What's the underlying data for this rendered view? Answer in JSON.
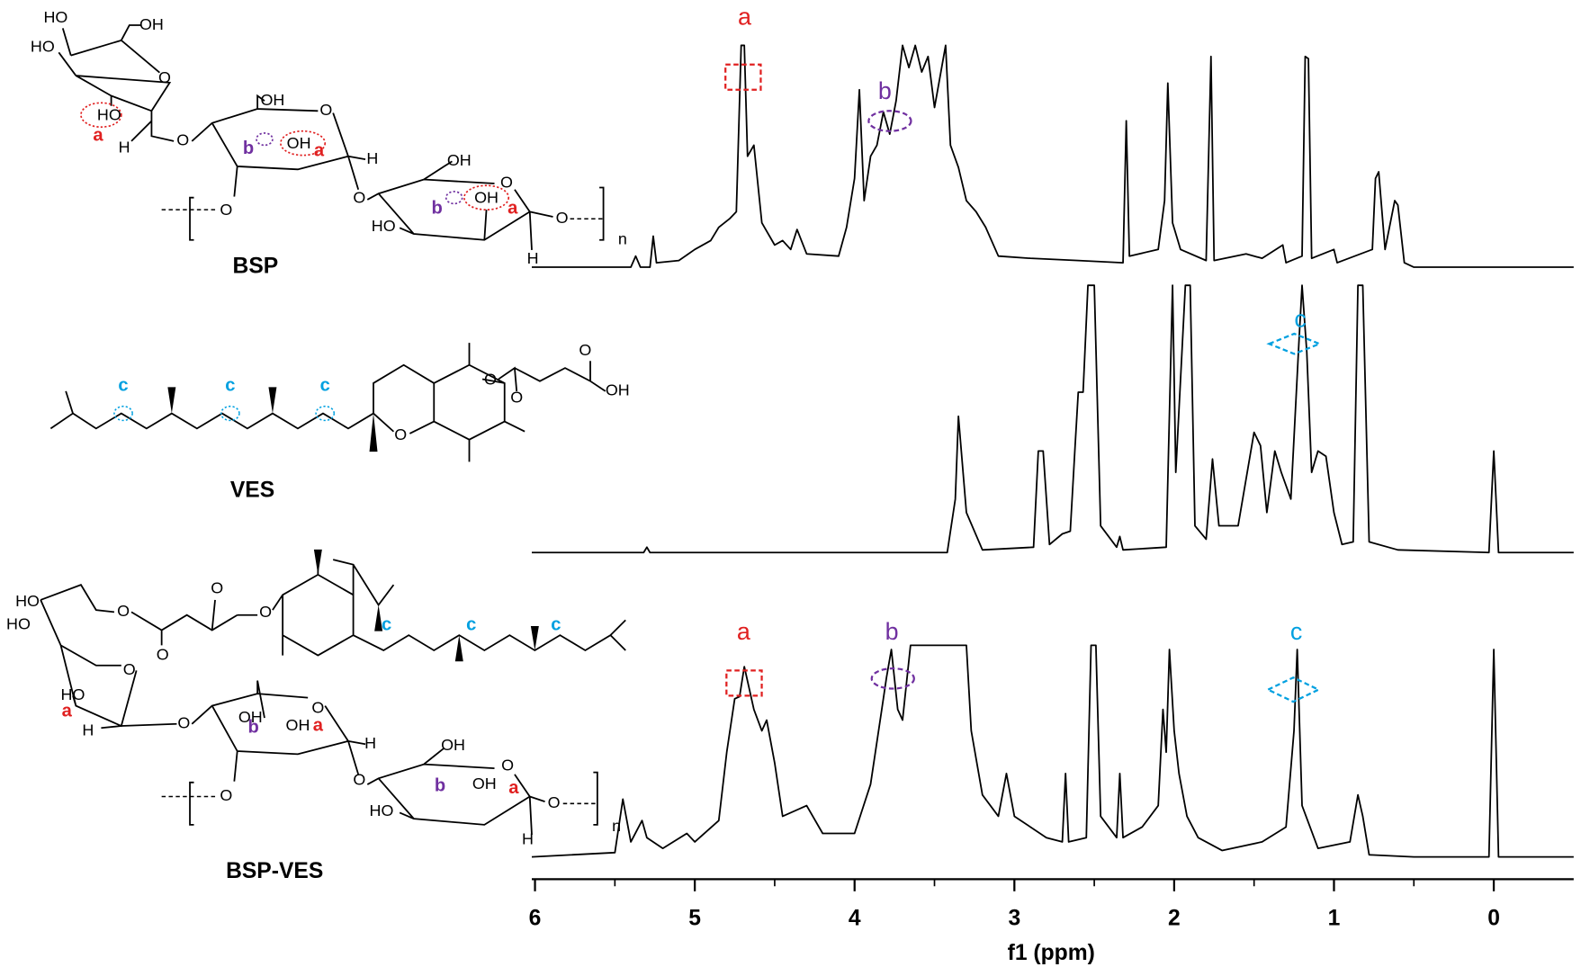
{
  "chart_data": {
    "type": "line",
    "x_label": "f1 (ppm)",
    "xlim": [
      6.02,
      -0.5
    ],
    "xticks": [
      6,
      5,
      4,
      3,
      2,
      1,
      0
    ],
    "ylim": [
      0,
      100
    ],
    "annotations": [
      "a",
      "b",
      "c",
      "a",
      "b",
      "c"
    ],
    "series": [
      {
        "name": "BSP",
        "color": "#000000",
        "x": [
          6.02,
          5.4,
          5.37,
          5.34,
          5.28,
          5.26,
          5.24,
          5.1,
          5.0,
          4.9,
          4.85,
          4.78,
          4.74,
          4.71,
          4.69,
          4.67,
          4.63,
          4.58,
          4.5,
          4.45,
          4.4,
          4.36,
          4.3,
          4.1,
          4.05,
          4.0,
          3.97,
          3.94,
          3.9,
          3.86,
          3.82,
          3.78,
          3.74,
          3.7,
          3.66,
          3.62,
          3.58,
          3.54,
          3.5,
          3.46,
          3.43,
          3.4,
          3.35,
          3.3,
          3.24,
          3.18,
          3.1,
          2.9,
          2.6,
          2.32,
          2.3,
          2.28,
          2.1,
          2.06,
          2.04,
          2.01,
          1.96,
          1.8,
          1.77,
          1.75,
          1.55,
          1.45,
          1.32,
          1.3,
          1.2,
          1.18,
          1.16,
          1.14,
          1.0,
          0.98,
          0.76,
          0.74,
          0.72,
          0.68,
          0.62,
          0.6,
          0.56,
          0.5,
          -0.5
        ],
        "values": [
          0,
          0,
          5,
          0,
          0,
          14,
          2,
          3,
          8,
          12,
          18,
          22,
          25,
          100,
          100,
          50,
          55,
          20,
          10,
          12,
          8,
          17,
          6,
          5,
          18,
          40,
          80,
          30,
          50,
          55,
          70,
          60,
          75,
          100,
          90,
          100,
          88,
          95,
          72,
          88,
          100,
          55,
          45,
          30,
          25,
          18,
          5,
          4,
          3,
          2,
          66,
          5,
          8,
          30,
          83,
          20,
          8,
          3,
          95,
          3,
          6,
          4,
          10,
          2,
          5,
          95,
          94,
          4,
          8,
          2,
          8,
          40,
          43,
          8,
          30,
          28,
          2,
          0,
          0
        ]
      },
      {
        "name": "VES",
        "color": "#000000",
        "x": [
          6.02,
          5.32,
          5.3,
          5.28,
          3.42,
          3.37,
          3.35,
          3.3,
          3.2,
          2.88,
          2.85,
          2.82,
          2.78,
          2.7,
          2.65,
          2.62,
          2.6,
          2.57,
          2.54,
          2.5,
          2.46,
          2.36,
          2.34,
          2.32,
          2.05,
          2.01,
          1.99,
          1.93,
          1.9,
          1.87,
          1.8,
          1.76,
          1.72,
          1.6,
          1.5,
          1.46,
          1.42,
          1.37,
          1.33,
          1.27,
          1.22,
          1.2,
          1.17,
          1.14,
          1.1,
          1.05,
          1.0,
          0.95,
          0.88,
          0.85,
          0.82,
          0.78,
          0.6,
          0.03,
          0.0,
          -0.03,
          -0.5
        ],
        "values": [
          0,
          0,
          2,
          0,
          0,
          20,
          51,
          15,
          1,
          2,
          38,
          38,
          3,
          7,
          8,
          40,
          60,
          60,
          100,
          100,
          10,
          2,
          6,
          1,
          2,
          100,
          30,
          100,
          100,
          10,
          5,
          35,
          10,
          10,
          45,
          40,
          15,
          38,
          30,
          20,
          78,
          100,
          75,
          30,
          38,
          36,
          15,
          3,
          4,
          100,
          100,
          4,
          1,
          0,
          38,
          0,
          0
        ]
      },
      {
        "name": "BSP-VES",
        "color": "#000000",
        "x": [
          6.02,
          5.5,
          5.45,
          5.4,
          5.33,
          5.3,
          5.2,
          5.05,
          5.0,
          4.85,
          4.8,
          4.75,
          4.72,
          4.69,
          4.63,
          4.58,
          4.55,
          4.5,
          4.45,
          4.3,
          4.2,
          4.0,
          3.9,
          3.83,
          3.8,
          3.77,
          3.73,
          3.7,
          3.65,
          3.5,
          3.3,
          3.27,
          3.2,
          3.1,
          3.05,
          3.0,
          2.8,
          2.7,
          2.68,
          2.66,
          2.55,
          2.52,
          2.49,
          2.46,
          2.36,
          2.34,
          2.32,
          2.2,
          2.1,
          2.07,
          2.05,
          2.03,
          2.0,
          1.97,
          1.92,
          1.85,
          1.7,
          1.45,
          1.3,
          1.25,
          1.23,
          1.2,
          1.1,
          0.9,
          0.85,
          0.82,
          0.78,
          0.5,
          0.03,
          0.0,
          -0.03,
          -0.5
        ],
        "values": [
          1,
          3,
          28,
          8,
          18,
          10,
          5,
          12,
          8,
          18,
          50,
          75,
          76,
          90,
          70,
          60,
          65,
          45,
          20,
          25,
          12,
          12,
          35,
          70,
          85,
          98,
          70,
          65,
          100,
          100,
          100,
          60,
          30,
          20,
          40,
          20,
          10,
          8,
          40,
          8,
          10,
          100,
          100,
          20,
          10,
          40,
          10,
          15,
          25,
          70,
          50,
          98,
          60,
          40,
          20,
          10,
          4,
          8,
          15,
          60,
          98,
          25,
          5,
          8,
          30,
          20,
          2,
          1,
          1,
          98,
          1,
          1
        ]
      }
    ]
  },
  "structures": [
    {
      "labels": [
        "HO",
        "OH",
        "HO",
        "O",
        "HO",
        "a",
        "H",
        "O",
        "OH",
        "b",
        "OH",
        "a",
        "O",
        "H",
        "O",
        "O",
        "OH",
        "O",
        "HO",
        "OH",
        "b",
        "a",
        "O",
        "H",
        "n"
      ]
    },
    {
      "labels": [
        "c",
        "c",
        "c",
        "O",
        "O",
        "O",
        "O",
        "OH"
      ]
    },
    {
      "labels": [
        "HO",
        "HO",
        "O",
        "O",
        "O",
        "O",
        "c",
        "c",
        "c",
        "O",
        "HO",
        "a",
        "H",
        "O",
        "OH",
        "b",
        "OH",
        "a",
        "O",
        "H",
        "O",
        "O",
        "OH",
        "O",
        "HO",
        "OH",
        "b",
        "a",
        "O",
        "H",
        "n"
      ]
    }
  ]
}
